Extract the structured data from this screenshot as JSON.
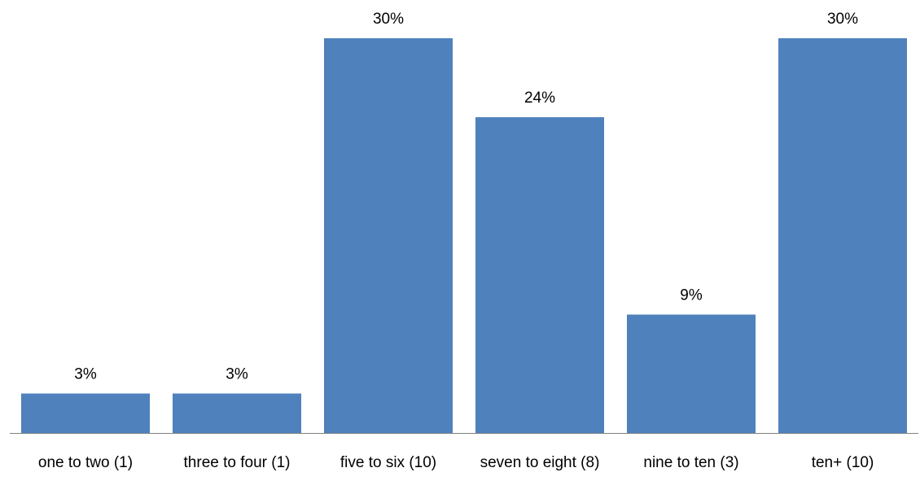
{
  "chart_data": {
    "type": "bar",
    "title": "",
    "xlabel": "",
    "ylabel": "",
    "ylim": [
      0,
      30
    ],
    "grid": false,
    "legend": "none",
    "categories": [
      "one to two (1)",
      "three to four (1)",
      "five to six (10)",
      "seven to eight (8)",
      "nine to ten (3)",
      "ten+ (10)"
    ],
    "values": [
      3,
      3,
      30,
      24,
      9,
      30
    ],
    "data_labels": [
      "3%",
      "3%",
      "30%",
      "24%",
      "9%",
      "30%"
    ],
    "bar_color": "#4F81BD",
    "axis_color": "#808080"
  }
}
